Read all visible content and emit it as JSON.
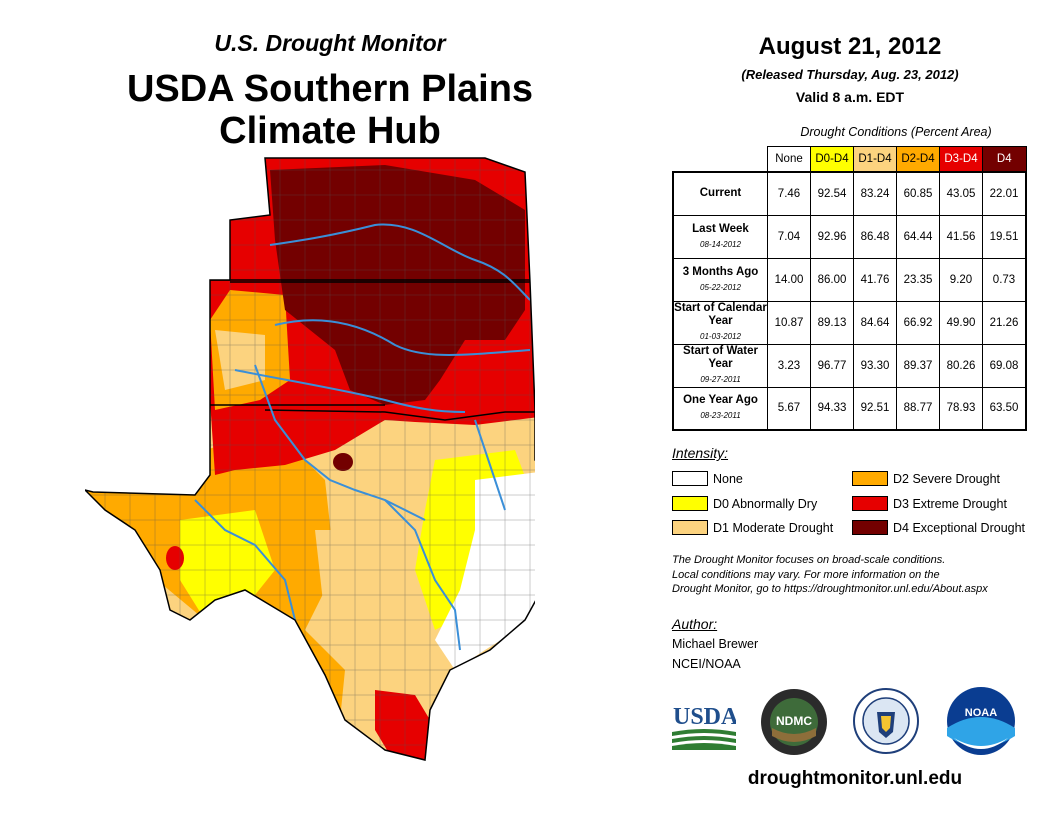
{
  "header": {
    "subtitle": "U.S. Drought Monitor",
    "title": "USDA Southern Plains Climate Hub",
    "title_line1": "USDA Southern Plains",
    "title_line2": "Climate Hub"
  },
  "report": {
    "date": "August 21, 2012",
    "released": "(Released Thursday, Aug. 23, 2012)",
    "valid": "Valid 8 a.m. EDT"
  },
  "table": {
    "caption": "Drought Conditions (Percent Area)",
    "columns": [
      {
        "label": "None",
        "color": "#ffffff",
        "text_color": "#000000"
      },
      {
        "label": "D0-D4",
        "color": "#ffff00",
        "text_color": "#000000"
      },
      {
        "label": "D1-D4",
        "color": "#fcd37f",
        "text_color": "#000000"
      },
      {
        "label": "D2-D4",
        "color": "#ffaa00",
        "text_color": "#000000"
      },
      {
        "label": "D3-D4",
        "color": "#e60000",
        "text_color": "#ffffff"
      },
      {
        "label": "D4",
        "color": "#730000",
        "text_color": "#ffffff"
      }
    ],
    "rows": [
      {
        "label": "Current",
        "date": "",
        "values": [
          "7.46",
          "92.54",
          "83.24",
          "60.85",
          "43.05",
          "22.01"
        ]
      },
      {
        "label": "Last Week",
        "date": "08-14-2012",
        "values": [
          "7.04",
          "92.96",
          "86.48",
          "64.44",
          "41.56",
          "19.51"
        ]
      },
      {
        "label": "3 Months Ago",
        "date": "05-22-2012",
        "values": [
          "14.00",
          "86.00",
          "41.76",
          "23.35",
          "9.20",
          "0.73"
        ]
      },
      {
        "label": "Start of Calendar Year",
        "date": "01-03-2012",
        "values": [
          "10.87",
          "89.13",
          "84.64",
          "66.92",
          "49.90",
          "21.26"
        ]
      },
      {
        "label": "Start of Water Year",
        "date": "09-27-2011",
        "values": [
          "3.23",
          "96.77",
          "93.30",
          "89.37",
          "80.26",
          "69.08"
        ]
      },
      {
        "label": "One Year Ago",
        "date": "08-23-2011",
        "values": [
          "5.67",
          "94.33",
          "92.51",
          "88.77",
          "78.93",
          "63.50"
        ]
      }
    ]
  },
  "legend": {
    "title": "Intensity:",
    "items": [
      {
        "label": "None",
        "color": "#ffffff"
      },
      {
        "label": "D0 Abnormally Dry",
        "color": "#ffff00"
      },
      {
        "label": "D1 Moderate Drought",
        "color": "#fcd37f"
      },
      {
        "label": "D2 Severe Drought",
        "color": "#ffaa00"
      },
      {
        "label": "D3 Extreme Drought",
        "color": "#e60000"
      },
      {
        "label": "D4 Exceptional Drought",
        "color": "#730000"
      }
    ]
  },
  "note": {
    "line1": "The Drought Monitor focuses on broad-scale conditions.",
    "line2": "Local conditions may vary. For more information on the",
    "line3": "Drought Monitor, go to https://droughtmonitor.unl.edu/About.aspx"
  },
  "author": {
    "heading": "Author:",
    "name": "Michael Brewer",
    "org": "NCEI/NOAA"
  },
  "logos": {
    "usda": "USDA",
    "ndmc": "NDMC",
    "noaa": "NOAA"
  },
  "footer": {
    "url": "droughtmonitor.unl.edu"
  }
}
